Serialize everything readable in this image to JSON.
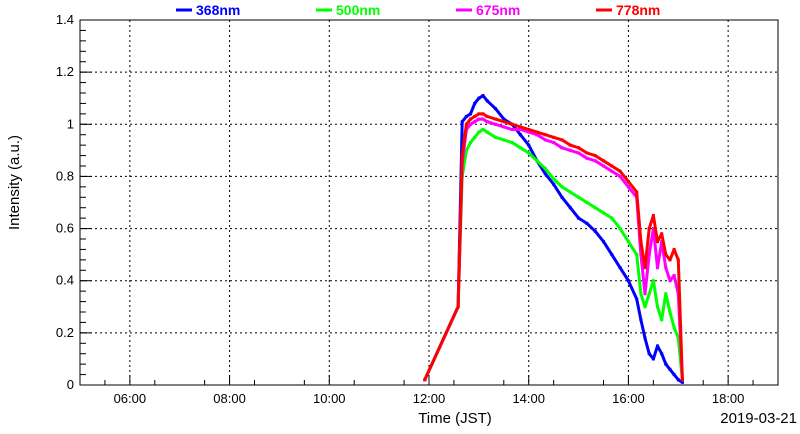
{
  "chart_data": {
    "type": "scatter",
    "xlabel": "Time (JST)",
    "ylabel": "Intensity (a.u.)",
    "date_label": "2019-03-21",
    "xlim": [
      "05:00",
      "19:00"
    ],
    "ylim": [
      0,
      1.4
    ],
    "x_ticks": [
      "06:00",
      "08:00",
      "10:00",
      "12:00",
      "14:00",
      "16:00",
      "18:00"
    ],
    "y_ticks": [
      "0",
      "0.2",
      "0.4",
      "0.6",
      "0.8",
      "1",
      "1.2",
      "1.4"
    ],
    "grid": true,
    "legend_position": "top",
    "series": [
      {
        "name": "368nm",
        "color": "#0000ff",
        "x": [
          "11:55",
          "12:35",
          "12:40",
          "12:45",
          "12:50",
          "12:55",
          "13:00",
          "13:05",
          "13:10",
          "13:20",
          "13:30",
          "13:40",
          "13:50",
          "14:00",
          "14:10",
          "14:20",
          "14:30",
          "14:40",
          "14:50",
          "15:00",
          "15:10",
          "15:20",
          "15:30",
          "15:40",
          "15:50",
          "16:00",
          "16:10",
          "16:15",
          "16:20",
          "16:25",
          "16:30",
          "16:35",
          "16:40",
          "16:45",
          "16:50",
          "16:55",
          "17:00",
          "17:05"
        ],
        "y": [
          0.02,
          0.3,
          1.01,
          1.03,
          1.04,
          1.08,
          1.1,
          1.11,
          1.09,
          1.06,
          1.02,
          1.0,
          0.96,
          0.92,
          0.86,
          0.81,
          0.77,
          0.72,
          0.68,
          0.64,
          0.62,
          0.59,
          0.55,
          0.5,
          0.45,
          0.4,
          0.33,
          0.25,
          0.18,
          0.12,
          0.1,
          0.15,
          0.12,
          0.08,
          0.06,
          0.04,
          0.02,
          0.01
        ]
      },
      {
        "name": "500nm",
        "color": "#00ff00",
        "x": [
          "11:55",
          "12:35",
          "12:40",
          "12:45",
          "12:50",
          "12:55",
          "13:00",
          "13:05",
          "13:10",
          "13:20",
          "13:30",
          "13:40",
          "13:50",
          "14:00",
          "14:10",
          "14:20",
          "14:30",
          "14:40",
          "14:50",
          "15:00",
          "15:10",
          "15:20",
          "15:30",
          "15:40",
          "15:50",
          "16:00",
          "16:10",
          "16:15",
          "16:20",
          "16:25",
          "16:30",
          "16:35",
          "16:40",
          "16:45",
          "16:50",
          "16:55",
          "17:00",
          "17:05"
        ],
        "y": [
          0.02,
          0.3,
          0.8,
          0.9,
          0.93,
          0.95,
          0.97,
          0.98,
          0.97,
          0.95,
          0.94,
          0.93,
          0.91,
          0.89,
          0.86,
          0.83,
          0.79,
          0.76,
          0.74,
          0.72,
          0.7,
          0.68,
          0.66,
          0.64,
          0.6,
          0.55,
          0.5,
          0.35,
          0.3,
          0.35,
          0.4,
          0.3,
          0.25,
          0.35,
          0.28,
          0.22,
          0.18,
          0.02
        ]
      },
      {
        "name": "675nm",
        "color": "#ff00ff",
        "x": [
          "11:55",
          "12:35",
          "12:40",
          "12:45",
          "12:50",
          "12:55",
          "13:00",
          "13:05",
          "13:10",
          "13:20",
          "13:30",
          "13:40",
          "13:50",
          "14:00",
          "14:10",
          "14:20",
          "14:30",
          "14:40",
          "14:50",
          "15:00",
          "15:10",
          "15:20",
          "15:30",
          "15:40",
          "15:50",
          "16:00",
          "16:10",
          "16:15",
          "16:20",
          "16:25",
          "16:30",
          "16:35",
          "16:40",
          "16:45",
          "16:50",
          "16:55",
          "17:00",
          "17:05"
        ],
        "y": [
          0.02,
          0.3,
          0.85,
          0.98,
          1.0,
          1.01,
          1.02,
          1.02,
          1.01,
          1.0,
          0.99,
          0.98,
          0.98,
          0.97,
          0.96,
          0.94,
          0.93,
          0.91,
          0.9,
          0.89,
          0.87,
          0.86,
          0.84,
          0.82,
          0.8,
          0.76,
          0.72,
          0.5,
          0.35,
          0.5,
          0.6,
          0.45,
          0.55,
          0.45,
          0.4,
          0.42,
          0.35,
          0.02
        ]
      },
      {
        "name": "778nm",
        "color": "#ff0000",
        "x": [
          "11:55",
          "12:35",
          "12:40",
          "12:45",
          "12:50",
          "12:55",
          "13:00",
          "13:05",
          "13:10",
          "13:20",
          "13:30",
          "13:40",
          "13:50",
          "14:00",
          "14:10",
          "14:20",
          "14:30",
          "14:40",
          "14:50",
          "15:00",
          "15:10",
          "15:20",
          "15:30",
          "15:40",
          "15:50",
          "16:00",
          "16:10",
          "16:15",
          "16:20",
          "16:25",
          "16:30",
          "16:35",
          "16:40",
          "16:45",
          "16:50",
          "16:55",
          "17:00",
          "17:05"
        ],
        "y": [
          0.02,
          0.3,
          0.88,
          1.0,
          1.02,
          1.03,
          1.04,
          1.04,
          1.03,
          1.02,
          1.01,
          1.0,
          0.99,
          0.98,
          0.97,
          0.96,
          0.95,
          0.94,
          0.92,
          0.91,
          0.89,
          0.88,
          0.86,
          0.84,
          0.82,
          0.78,
          0.74,
          0.55,
          0.45,
          0.6,
          0.65,
          0.55,
          0.58,
          0.5,
          0.48,
          0.52,
          0.48,
          0.02
        ]
      }
    ]
  }
}
